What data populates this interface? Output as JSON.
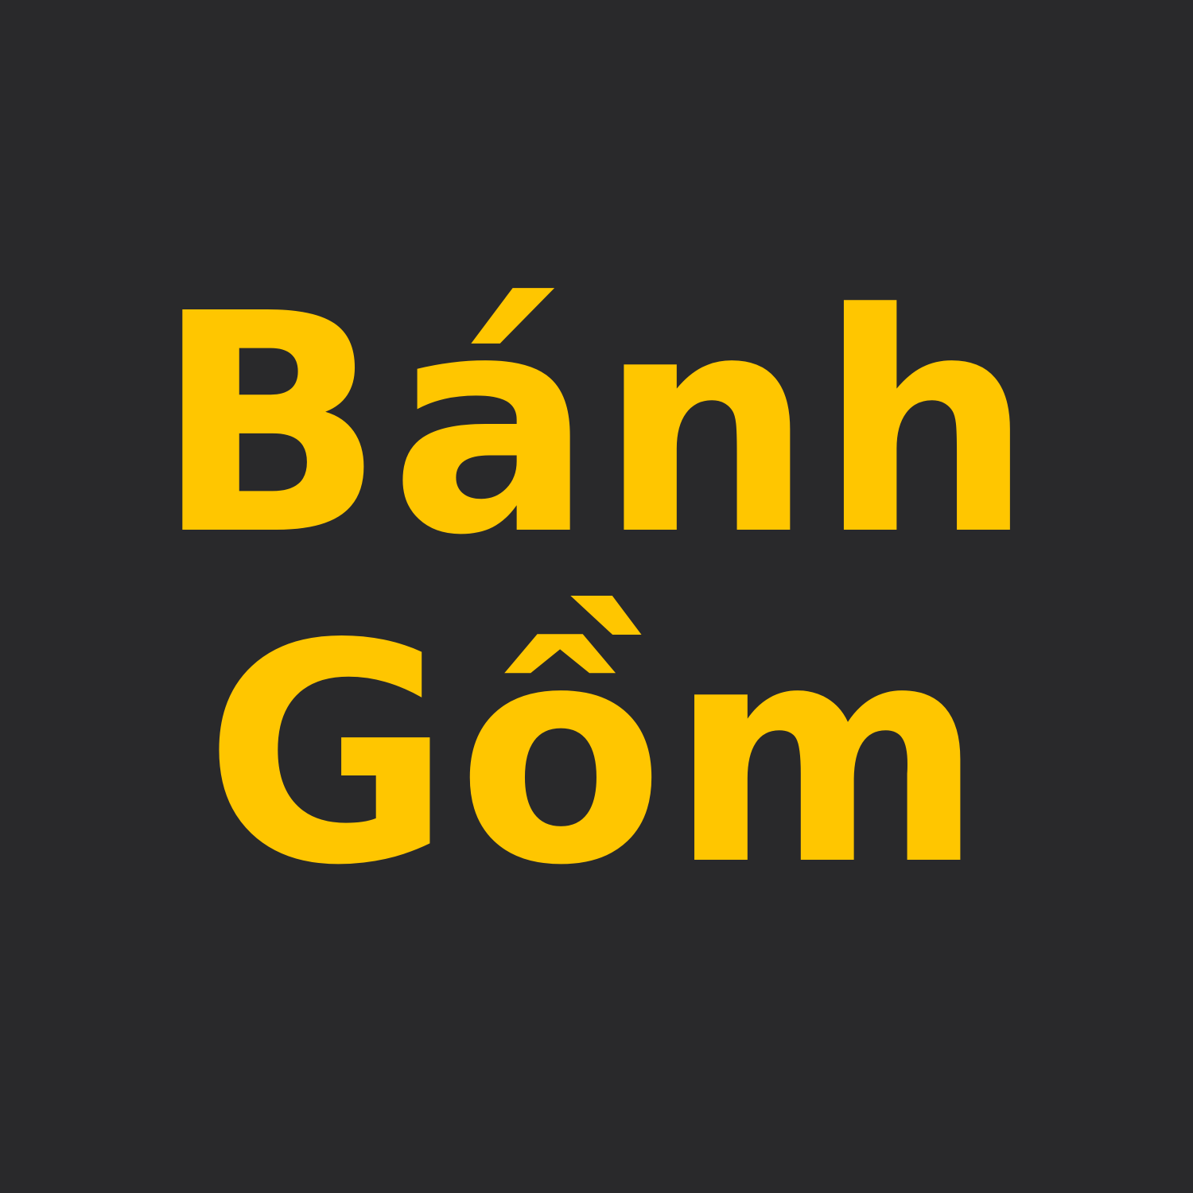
{
  "logo": {
    "line1": "Bánh",
    "line2": "Gồm",
    "text_color": "#ffc600",
    "background_color": "#29292b"
  }
}
